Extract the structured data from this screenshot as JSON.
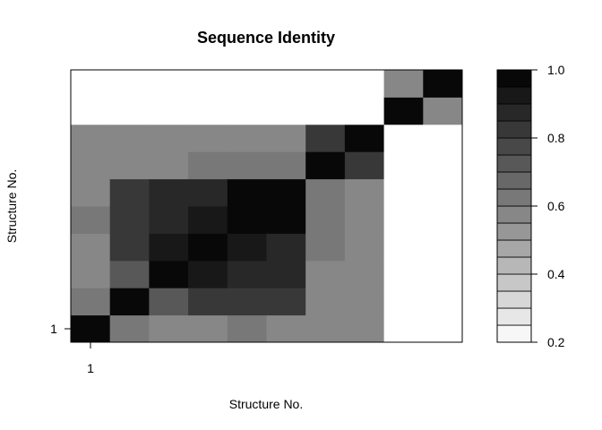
{
  "chart_data": {
    "type": "heatmap",
    "title": "Sequence Identity",
    "xlabel": "Structure No.",
    "ylabel": "Structure No.",
    "x_tick_labels": [
      "1"
    ],
    "y_tick_labels": [
      "1"
    ],
    "n_structures": 10,
    "matrix": [
      [
        1.0,
        0.62,
        0.58,
        0.58,
        0.62,
        0.58,
        0.58,
        0.56,
        null,
        null
      ],
      [
        0.62,
        1.0,
        0.73,
        0.8,
        0.8,
        0.8,
        0.6,
        0.58,
        null,
        null
      ],
      [
        0.58,
        0.73,
        1.0,
        0.93,
        0.86,
        0.86,
        0.56,
        0.58,
        null,
        null
      ],
      [
        0.58,
        0.8,
        0.93,
        1.0,
        0.93,
        0.86,
        0.62,
        0.58,
        null,
        null
      ],
      [
        0.62,
        0.8,
        0.86,
        0.93,
        1.0,
        1.0,
        0.62,
        0.58,
        null,
        null
      ],
      [
        0.58,
        0.8,
        0.86,
        0.86,
        1.0,
        1.0,
        0.62,
        0.58,
        null,
        null
      ],
      [
        0.58,
        0.6,
        0.56,
        0.62,
        0.62,
        0.62,
        1.0,
        0.8,
        null,
        null
      ],
      [
        0.56,
        0.58,
        0.58,
        0.58,
        0.58,
        0.58,
        0.8,
        1.0,
        null,
        null
      ],
      [
        null,
        null,
        null,
        null,
        null,
        null,
        null,
        null,
        1.0,
        0.58
      ],
      [
        null,
        null,
        null,
        null,
        null,
        null,
        null,
        null,
        0.58,
        1.0
      ]
    ],
    "colorbar": {
      "min": 0.2,
      "max": 1.0,
      "steps": 16,
      "tick_values": [
        0.2,
        0.4,
        0.6,
        0.8,
        1.0
      ],
      "tick_labels": [
        "0.2",
        "0.4",
        "0.6",
        "0.8",
        "1.0"
      ]
    },
    "colors": {
      "low": "#ffffff",
      "high": "#000000",
      "axis": "#000000"
    }
  }
}
